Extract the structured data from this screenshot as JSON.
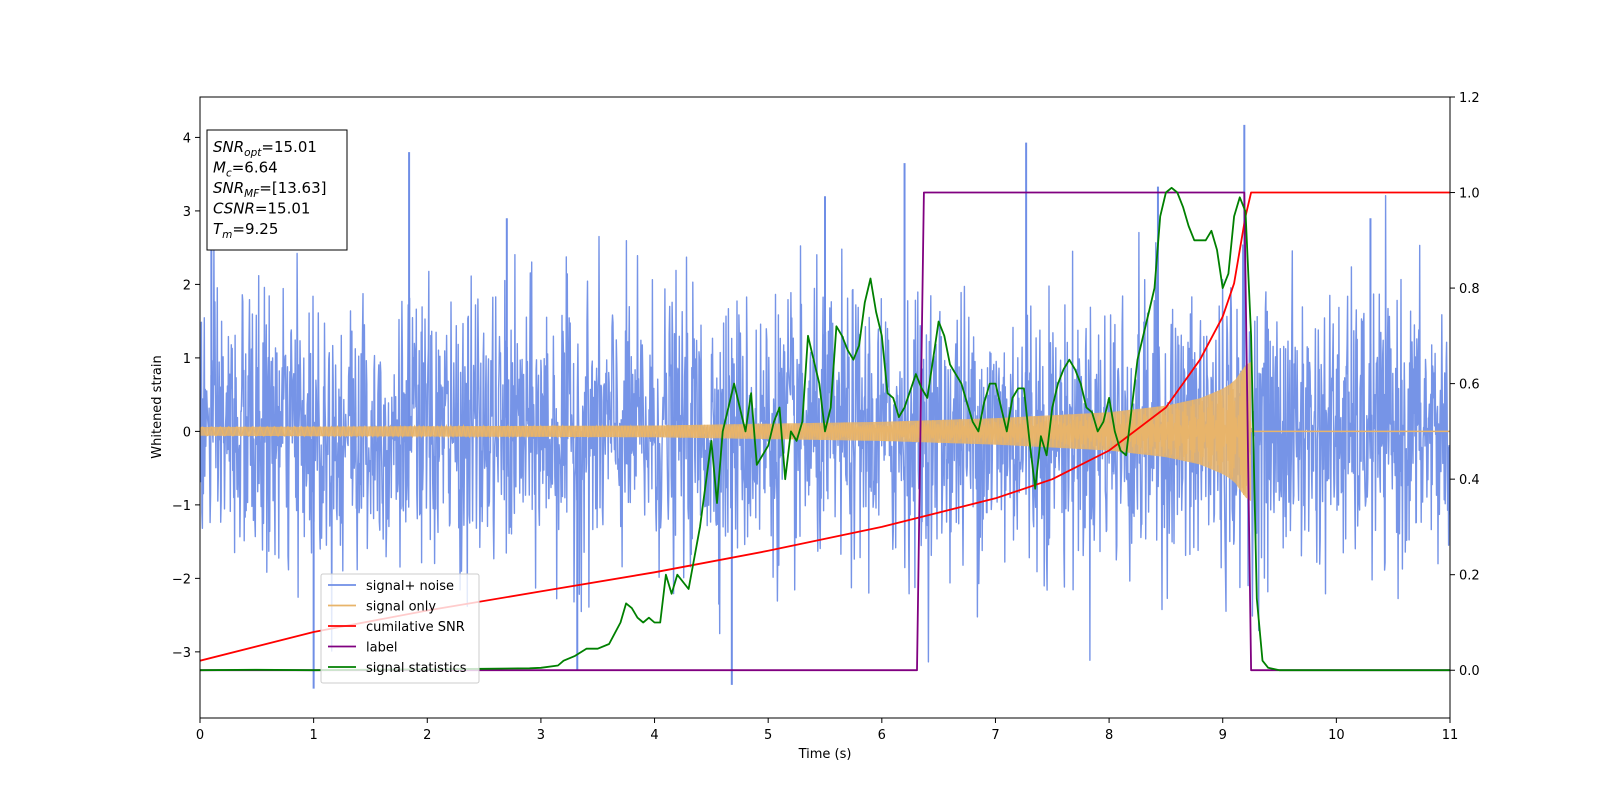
{
  "chart_data": {
    "type": "line",
    "xlabel": "Time (s)",
    "ylabel": "Whitened strain",
    "xlim": [
      0,
      11
    ],
    "ylim_left": [
      -3.9,
      4.55
    ],
    "ylim_right": [
      -0.1,
      1.2
    ],
    "x_ticks": [
      0,
      1,
      2,
      3,
      4,
      5,
      6,
      7,
      8,
      9,
      10,
      11
    ],
    "y_ticks_left": [
      -3,
      -2,
      -1,
      0,
      1,
      2,
      3,
      4
    ],
    "y_ticks_right": [
      0.0,
      0.2,
      0.4,
      0.6,
      0.8,
      1.0,
      1.2
    ],
    "grid": false,
    "legend_position": "lower-left",
    "colors": {
      "signal_noise": "#6f8ee6",
      "signal_only": "#e8b46a",
      "cumulative_snr": "#ff0000",
      "label": "#800080",
      "signal_statistics": "#008000"
    },
    "info_box": [
      {
        "main": "SNR",
        "sub": "opt",
        "rest": "=15.01"
      },
      {
        "main": "M",
        "sub": "c",
        "rest": "=6.64"
      },
      {
        "main": "SNR",
        "sub": "MF",
        "rest": "=[13.63]"
      },
      {
        "main": "CSNR",
        "sub": "",
        "rest": "=15.01"
      },
      {
        "main": "T",
        "sub": "m",
        "rest": "=9.25"
      }
    ],
    "series": [
      {
        "name": "signal+ noise",
        "axis": "left",
        "noise_sigma": 0.9,
        "band_ymin": [
          -3.5,
          -3.5
        ],
        "band_ymax": [
          4.17,
          4.17
        ],
        "spikes": [
          [
            0.1,
            2.9
          ],
          [
            1.0,
            -3.5
          ],
          [
            1.84,
            3.8
          ],
          [
            3.32,
            -3.25
          ],
          [
            4.68,
            -3.45
          ],
          [
            6.2,
            3.65
          ],
          [
            7.27,
            3.93
          ],
          [
            8.43,
            3.33
          ],
          [
            9.19,
            4.17
          ],
          [
            5.5,
            3.2
          ],
          [
            2.7,
            2.9
          ],
          [
            10.3,
            2.9
          ]
        ]
      },
      {
        "name": "signal only",
        "axis": "left",
        "envelope_x": [
          0,
          4,
          6,
          7,
          8,
          8.5,
          8.8,
          9.0,
          9.1,
          9.2,
          9.25
        ],
        "envelope_y": [
          0.06,
          0.08,
          0.13,
          0.18,
          0.26,
          0.35,
          0.45,
          0.58,
          0.68,
          0.9,
          0.95
        ],
        "after_merger_value": 0
      },
      {
        "name": "cumilative SNR",
        "axis": "right",
        "x": [
          0,
          1,
          2,
          3,
          4,
          5,
          6,
          6.5,
          7,
          7.5,
          8,
          8.5,
          8.8,
          9.0,
          9.1,
          9.2,
          9.25,
          11
        ],
        "y": [
          0.02,
          0.08,
          0.125,
          0.165,
          0.205,
          0.25,
          0.3,
          0.33,
          0.36,
          0.4,
          0.46,
          0.55,
          0.65,
          0.74,
          0.81,
          0.95,
          1.0,
          1.0
        ]
      },
      {
        "name": "label",
        "axis": "right",
        "x": [
          0,
          6.31,
          6.37,
          9.19,
          9.25,
          11
        ],
        "y": [
          0,
          0,
          1,
          1,
          0,
          0
        ]
      },
      {
        "name": "signal statistics",
        "axis": "right",
        "x": [
          0,
          0.5,
          1,
          2,
          2.5,
          2.9,
          3.0,
          3.15,
          3.2,
          3.3,
          3.4,
          3.5,
          3.6,
          3.7,
          3.75,
          3.8,
          3.85,
          3.9,
          3.95,
          4.0,
          4.05,
          4.1,
          4.15,
          4.2,
          4.3,
          4.4,
          4.5,
          4.55,
          4.6,
          4.7,
          4.75,
          4.8,
          4.85,
          4.9,
          5.0,
          5.05,
          5.1,
          5.15,
          5.2,
          5.25,
          5.3,
          5.35,
          5.4,
          5.45,
          5.5,
          5.55,
          5.6,
          5.65,
          5.7,
          5.75,
          5.8,
          5.85,
          5.9,
          5.95,
          6.0,
          6.05,
          6.1,
          6.15,
          6.2,
          6.3,
          6.35,
          6.4,
          6.45,
          6.5,
          6.55,
          6.6,
          6.65,
          6.7,
          6.75,
          6.8,
          6.85,
          6.9,
          6.95,
          7.0,
          7.05,
          7.1,
          7.15,
          7.2,
          7.25,
          7.3,
          7.35,
          7.4,
          7.45,
          7.5,
          7.55,
          7.6,
          7.65,
          7.7,
          7.75,
          7.8,
          7.85,
          7.9,
          7.95,
          8.0,
          8.05,
          8.1,
          8.15,
          8.2,
          8.25,
          8.3,
          8.35,
          8.4,
          8.45,
          8.5,
          8.55,
          8.6,
          8.65,
          8.7,
          8.75,
          8.8,
          8.85,
          8.9,
          8.95,
          9.0,
          9.05,
          9.1,
          9.15,
          9.2,
          9.25,
          9.3,
          9.35,
          9.4,
          9.5,
          10,
          11
        ],
        "y": [
          0.0,
          0.001,
          0.0,
          0.002,
          0.003,
          0.004,
          0.005,
          0.01,
          0.02,
          0.03,
          0.045,
          0.045,
          0.055,
          0.1,
          0.14,
          0.13,
          0.11,
          0.1,
          0.11,
          0.1,
          0.1,
          0.2,
          0.16,
          0.2,
          0.17,
          0.3,
          0.48,
          0.35,
          0.5,
          0.6,
          0.55,
          0.5,
          0.58,
          0.43,
          0.47,
          0.52,
          0.55,
          0.4,
          0.5,
          0.48,
          0.52,
          0.7,
          0.65,
          0.6,
          0.5,
          0.55,
          0.72,
          0.7,
          0.67,
          0.65,
          0.68,
          0.77,
          0.82,
          0.75,
          0.7,
          0.58,
          0.57,
          0.53,
          0.55,
          0.62,
          0.59,
          0.57,
          0.65,
          0.73,
          0.7,
          0.64,
          0.62,
          0.6,
          0.56,
          0.52,
          0.5,
          0.56,
          0.6,
          0.6,
          0.55,
          0.5,
          0.57,
          0.59,
          0.59,
          0.48,
          0.38,
          0.49,
          0.45,
          0.55,
          0.6,
          0.63,
          0.65,
          0.63,
          0.6,
          0.55,
          0.54,
          0.5,
          0.52,
          0.57,
          0.5,
          0.46,
          0.45,
          0.55,
          0.65,
          0.7,
          0.75,
          0.8,
          0.95,
          1.0,
          1.01,
          1.0,
          0.97,
          0.93,
          0.9,
          0.9,
          0.9,
          0.92,
          0.88,
          0.8,
          0.83,
          0.95,
          0.99,
          0.96,
          0.7,
          0.15,
          0.02,
          0.005,
          0.0,
          0.0,
          0.0
        ]
      }
    ]
  }
}
